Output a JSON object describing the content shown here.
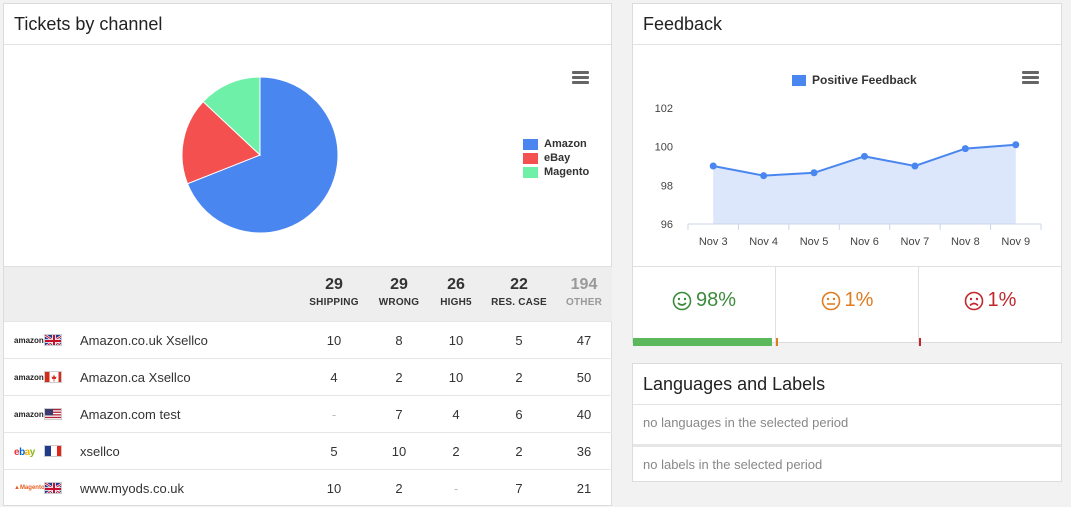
{
  "tickets_panel": {
    "title": "Tickets by channel",
    "pie": {
      "slices": [
        {
          "label": "Amazon",
          "value": 69,
          "color": "#4a86f0"
        },
        {
          "label": "eBay",
          "value": 18,
          "color": "#f45050"
        },
        {
          "label": "Magento",
          "value": 13,
          "color": "#6ef0a8"
        }
      ]
    },
    "legend": [
      "Amazon",
      "eBay",
      "Magento"
    ],
    "columns": [
      {
        "total": "29",
        "label": "SHIPPING"
      },
      {
        "total": "29",
        "label": "WRONG"
      },
      {
        "total": "26",
        "label": "HIGH5"
      },
      {
        "total": "22",
        "label": "RES. CASE"
      },
      {
        "total": "194",
        "label": "OTHER"
      }
    ],
    "rows": [
      {
        "logo": "amazon",
        "flag": "uk",
        "name": "Amazon.co.uk Xsellco",
        "values": [
          "10",
          "8",
          "10",
          "5",
          "47"
        ]
      },
      {
        "logo": "amazon",
        "flag": "ca",
        "name": "Amazon.ca Xsellco",
        "values": [
          "4",
          "2",
          "10",
          "2",
          "50"
        ]
      },
      {
        "logo": "amazon",
        "flag": "us",
        "name": "Amazon.com test",
        "values": [
          "-",
          "7",
          "4",
          "6",
          "40"
        ]
      },
      {
        "logo": "ebay",
        "flag": "fr",
        "name": "xsellco",
        "values": [
          "5",
          "10",
          "2",
          "2",
          "36"
        ]
      },
      {
        "logo": "magento",
        "flag": "uk",
        "name": "www.myods.co.uk",
        "values": [
          "10",
          "2",
          "-",
          "7",
          "21"
        ]
      }
    ]
  },
  "feedback_panel": {
    "title": "Feedback",
    "chart_data": {
      "type": "area",
      "series": [
        {
          "name": "Positive Feedback",
          "values": [
            99.0,
            98.5,
            98.65,
            99.5,
            99.0,
            99.9,
            100.1
          ]
        }
      ],
      "categories": [
        "Nov 3",
        "Nov 4",
        "Nov 5",
        "Nov 6",
        "Nov 7",
        "Nov 8",
        "Nov 9"
      ],
      "yticks": [
        "96",
        "98",
        "100",
        "102"
      ],
      "ylim": [
        96,
        102
      ],
      "color": "#4a86f0",
      "fill": "#dce7fb"
    },
    "stats": [
      {
        "face": "smile-icon",
        "value": "98%",
        "color": "#3c8a3c",
        "bar": 0.98,
        "bar_color": "#5cb85c"
      },
      {
        "face": "neutral-icon",
        "value": "1%",
        "color": "#e07b20",
        "bar": 0.01,
        "bar_color": "#e07b20"
      },
      {
        "face": "frown-icon",
        "value": "1%",
        "color": "#c0282d",
        "bar": 0.01,
        "bar_color": "#c0282d"
      }
    ]
  },
  "languages_panel": {
    "title": "Languages and Labels",
    "languages_empty": "no languages in the selected period",
    "labels_empty": "no labels in the selected period"
  }
}
